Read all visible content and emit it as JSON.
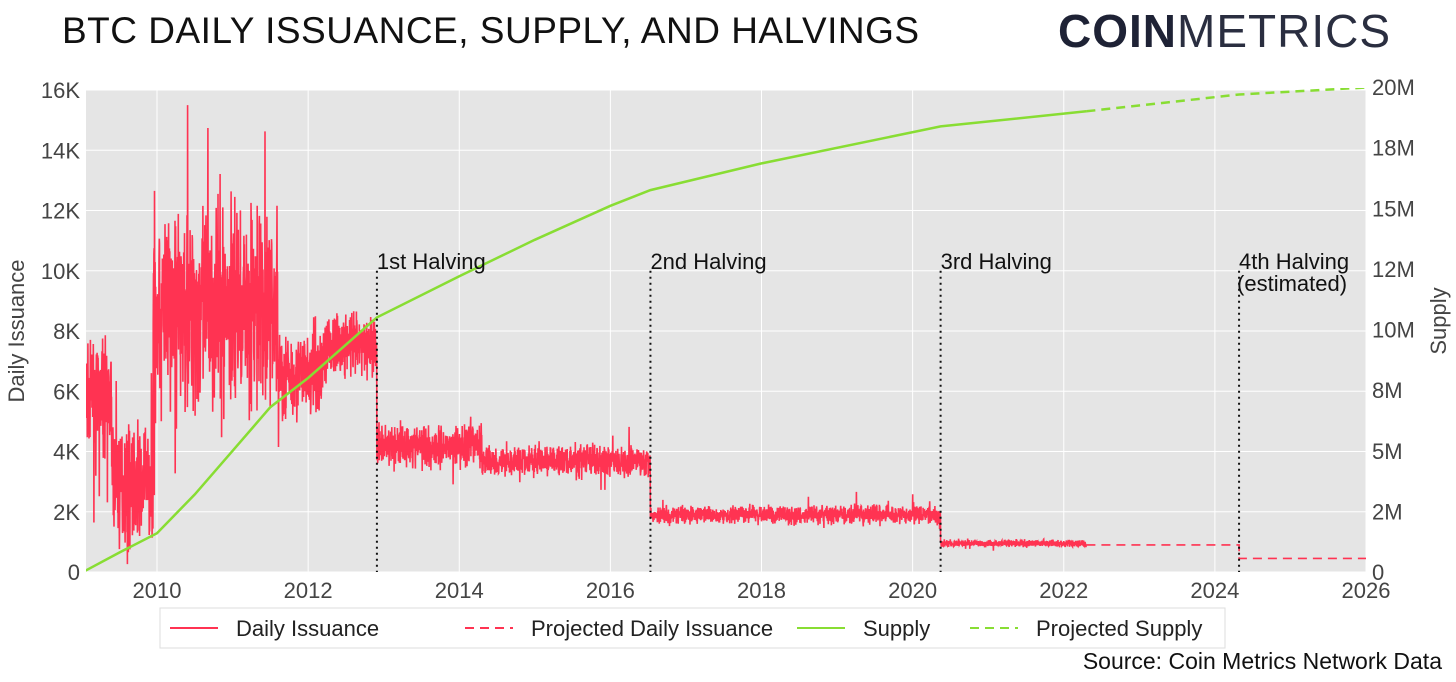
{
  "title": "BTC DAILY ISSUANCE, SUPPLY, AND HALVINGS",
  "logo": {
    "bold": "COIN",
    "light": "METRICS"
  },
  "source": "Source: Coin Metrics Network Data",
  "chart_data": {
    "type": "line",
    "title": "BTC DAILY ISSUANCE, SUPPLY, AND HALVINGS",
    "xlabel": "",
    "ylabel": "Daily Issuance",
    "y2label": "Supply",
    "xlim": [
      2009.0,
      2026
    ],
    "ylim": [
      0,
      16000
    ],
    "y2lim": [
      0,
      20000000
    ],
    "grid": true,
    "background": "#e5e5e5",
    "x_ticks": [
      "2010",
      "2012",
      "2014",
      "2016",
      "2018",
      "2020",
      "2022",
      "2024",
      "2026"
    ],
    "y_ticks": [
      "0",
      "2K",
      "4K",
      "6K",
      "8K",
      "10K",
      "12K",
      "14K",
      "16K"
    ],
    "y2_ticks": [
      "0",
      "2M",
      "5M",
      "8M",
      "10M",
      "12M",
      "15M",
      "18M",
      "20M"
    ],
    "legend_position": "bottom",
    "legend": [
      "Daily Issuance",
      "Projected Daily Issuance",
      "Supply",
      "Projected Supply"
    ],
    "series": [
      {
        "name": "Daily Issuance",
        "axis": "left",
        "color": "#ff3352",
        "style": "solid",
        "segments": [
          {
            "start": 2009.02,
            "end": 2009.4,
            "mean": 5800,
            "noise": 1100
          },
          {
            "start": 2009.4,
            "end": 2009.95,
            "mean": 3000,
            "noise": 1300
          },
          {
            "start": 2009.95,
            "end": 2011.6,
            "mean": 8800,
            "noise": 2300
          },
          {
            "start": 2011.6,
            "end": 2012.2,
            "mean": 6600,
            "noise": 1000
          },
          {
            "start": 2012.2,
            "end": 2012.91,
            "mean": 7500,
            "noise": 700
          },
          {
            "start": 2012.91,
            "end": 2014.3,
            "mean": 4200,
            "noise": 500
          },
          {
            "start": 2014.3,
            "end": 2016.53,
            "mean": 3700,
            "noise": 350
          },
          {
            "start": 2016.53,
            "end": 2020.37,
            "mean": 1900,
            "noise": 200
          },
          {
            "start": 2020.37,
            "end": 2022.3,
            "mean": 950,
            "noise": 80
          }
        ]
      },
      {
        "name": "Projected Daily Issuance",
        "axis": "left",
        "color": "#ff3352",
        "style": "dashed",
        "x": [
          2022.3,
          2024.32,
          2024.32,
          2026
        ],
        "y": [
          900,
          900,
          450,
          450
        ]
      },
      {
        "name": "Supply",
        "axis": "right",
        "color": "#88dd33",
        "style": "solid",
        "x": [
          2009.02,
          2009.5,
          2010.0,
          2010.5,
          2011.0,
          2011.5,
          2012.0,
          2012.91,
          2014.0,
          2015.0,
          2016.0,
          2016.53,
          2018.0,
          2020.37,
          2022.3
        ],
        "y": [
          0,
          800000,
          1600000,
          3200000,
          5000000,
          6800000,
          8000000,
          10500000,
          12200000,
          13700000,
          15100000,
          15750000,
          16850000,
          18375000,
          19000000
        ]
      },
      {
        "name": "Projected Supply",
        "axis": "right",
        "color": "#88dd33",
        "style": "dashed",
        "x": [
          2022.3,
          2024.32,
          2026
        ],
        "y": [
          19000000,
          19690000,
          19980000
        ]
      }
    ],
    "annotations": [
      {
        "x": 2012.91,
        "label": "1st Halving"
      },
      {
        "x": 2016.53,
        "label": "2nd Halving"
      },
      {
        "x": 2020.37,
        "label": "3rd Halving"
      },
      {
        "x": 2024.32,
        "label": "4th Halving",
        "sublabel": "(estimated)"
      }
    ]
  }
}
